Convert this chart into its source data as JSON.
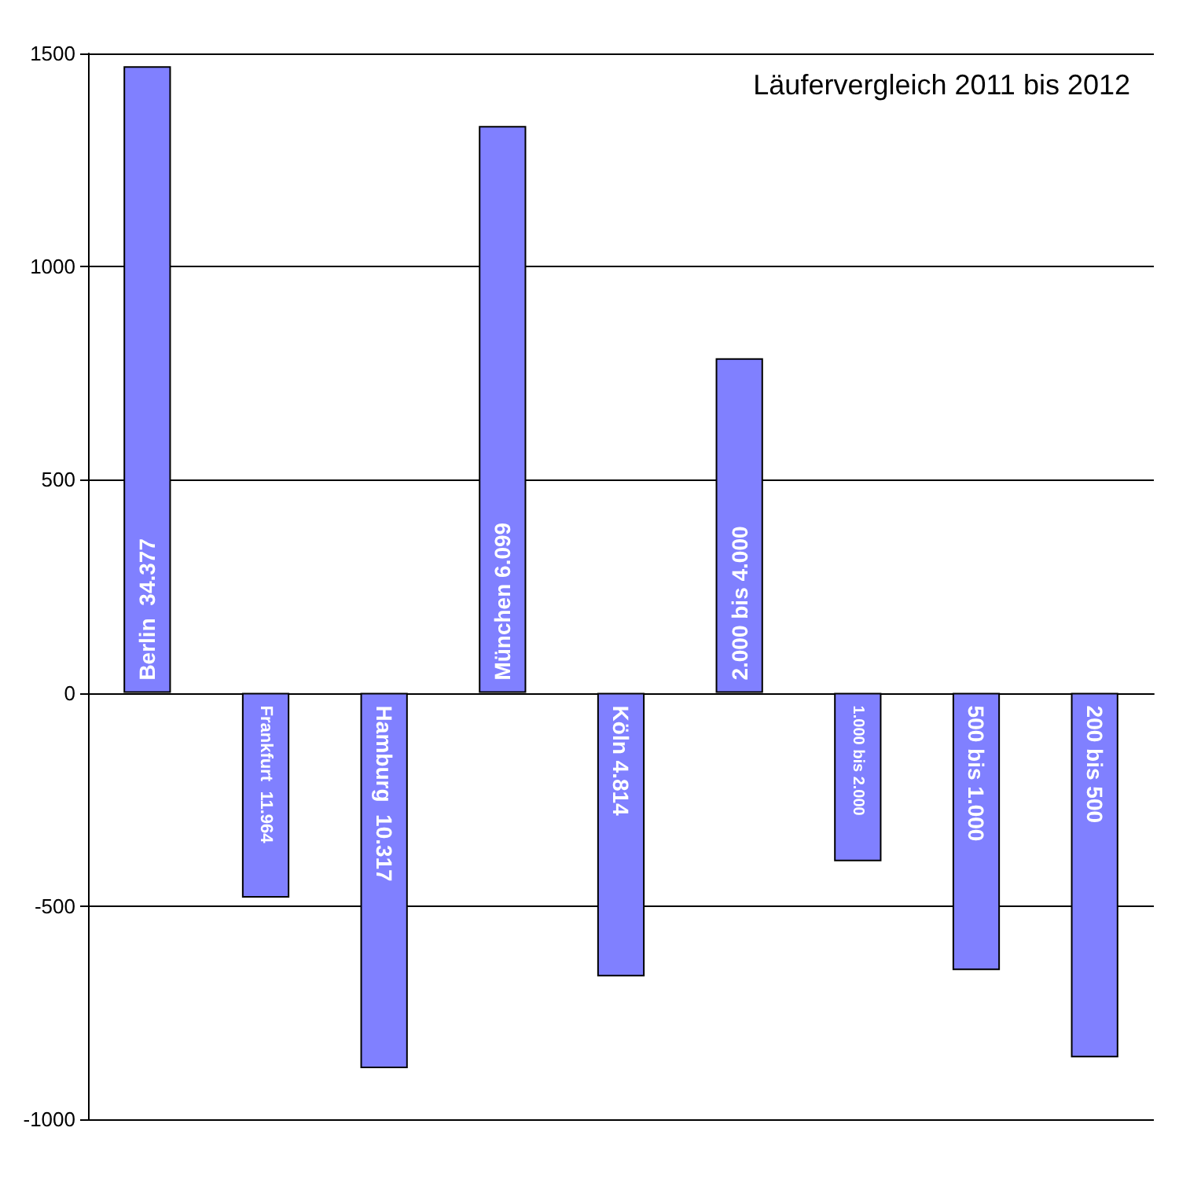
{
  "chart_data": {
    "type": "bar",
    "title": "Läufervergleich 2011 bis 2012",
    "categories": [
      "Berlin  34.377",
      "Frankfurt  11.964",
      "Hamburg  10.317",
      "München 6.099",
      "Köln 4.814",
      "2.000 bis 4.000",
      "1.000 bis 2.000",
      "500 bis 1.000",
      "200 bis 500"
    ],
    "values": [
      1470,
      -480,
      -880,
      1330,
      -665,
      785,
      -395,
      -650,
      -855
    ],
    "color": "#8080ff",
    "ylim": [
      -1000,
      1500
    ],
    "yticks": [
      -1000,
      -500,
      0,
      500,
      1000,
      1500
    ],
    "grid": "y",
    "tick_labels": "y"
  }
}
